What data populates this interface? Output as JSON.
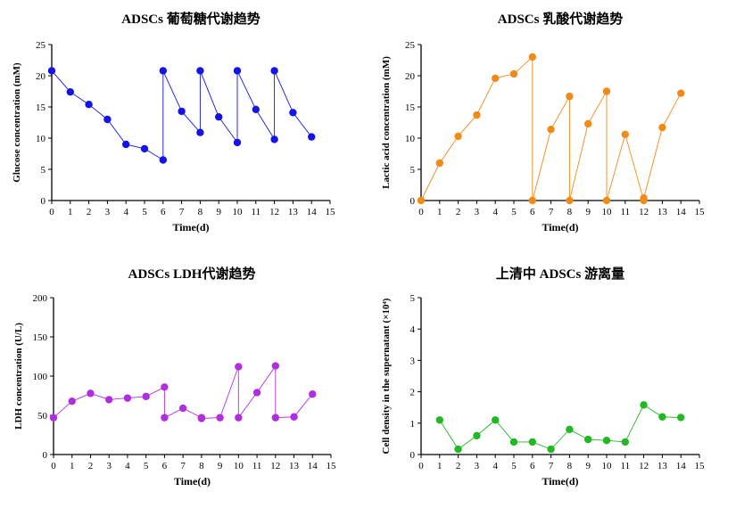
{
  "chart_data": [
    {
      "type": "line",
      "title": "ADSCs 葡萄糖代谢趋势",
      "xlabel": "Time(d)",
      "ylabel": "Glucose concentration (mM)",
      "xlim": [
        0,
        15
      ],
      "ylim": [
        0,
        25
      ],
      "xticks": [
        0,
        1,
        2,
        3,
        4,
        5,
        6,
        7,
        8,
        9,
        10,
        11,
        12,
        13,
        14,
        15
      ],
      "yticks": [
        0,
        5,
        10,
        15,
        20,
        25
      ],
      "color": "#1414e6",
      "points": [
        [
          0,
          20.8
        ],
        [
          1,
          17.4
        ],
        [
          2,
          15.4
        ],
        [
          3,
          13.0
        ],
        [
          4,
          9.0
        ],
        [
          5,
          8.3
        ],
        [
          6,
          6.5
        ],
        [
          6,
          20.8
        ],
        [
          7,
          14.3
        ],
        [
          8,
          10.9
        ],
        [
          8,
          20.8
        ],
        [
          9,
          13.4
        ],
        [
          10,
          9.3
        ],
        [
          10,
          20.8
        ],
        [
          11,
          14.6
        ],
        [
          12,
          9.8
        ],
        [
          12,
          20.8
        ],
        [
          13,
          14.1
        ],
        [
          14,
          10.2
        ]
      ]
    },
    {
      "type": "line",
      "title": "ADSCs 乳酸代谢趋势",
      "xlabel": "Time(d)",
      "ylabel": "Lactic acid concentration (mM)",
      "xlim": [
        0,
        15
      ],
      "ylim": [
        0,
        25
      ],
      "xticks": [
        0,
        1,
        2,
        3,
        4,
        5,
        6,
        7,
        8,
        9,
        10,
        11,
        12,
        13,
        14,
        15
      ],
      "yticks": [
        0,
        5,
        10,
        15,
        20,
        25
      ],
      "color": "#f28a1a",
      "points": [
        [
          0,
          0.0
        ],
        [
          1,
          6.0
        ],
        [
          2,
          10.3
        ],
        [
          3,
          13.7
        ],
        [
          4,
          19.6
        ],
        [
          5,
          20.3
        ],
        [
          6,
          23.0
        ],
        [
          6,
          0.0
        ],
        [
          7,
          11.4
        ],
        [
          8,
          16.7
        ],
        [
          8,
          0.0
        ],
        [
          9,
          12.3
        ],
        [
          10,
          17.5
        ],
        [
          10,
          0.0
        ],
        [
          11,
          10.6
        ],
        [
          12,
          0.0
        ],
        [
          12,
          0.4
        ],
        [
          13,
          11.7
        ],
        [
          14,
          17.2
        ]
      ]
    },
    {
      "type": "line",
      "title": "ADSCs LDH代谢趋势",
      "xlabel": "Time(d)",
      "ylabel": "LDH concentration (U/L)",
      "xlim": [
        0,
        15
      ],
      "ylim": [
        0,
        200
      ],
      "xticks": [
        0,
        1,
        2,
        3,
        4,
        5,
        6,
        7,
        8,
        9,
        10,
        11,
        12,
        13,
        14,
        15
      ],
      "yticks": [
        0,
        50,
        100,
        150,
        200
      ],
      "color": "#b02ee0",
      "points": [
        [
          0,
          47
        ],
        [
          1,
          68
        ],
        [
          2,
          78
        ],
        [
          3,
          70
        ],
        [
          4,
          72
        ],
        [
          5,
          74
        ],
        [
          6,
          86
        ],
        [
          6,
          47
        ],
        [
          7,
          59
        ],
        [
          8,
          47
        ],
        [
          8,
          46
        ],
        [
          9,
          47
        ],
        [
          10,
          112
        ],
        [
          10,
          47
        ],
        [
          11,
          79
        ],
        [
          12,
          113
        ],
        [
          12,
          47
        ],
        [
          13,
          48
        ],
        [
          14,
          77
        ]
      ]
    },
    {
      "type": "line",
      "title": "上清中 ADSCs 游离量",
      "xlabel": "Time(d)",
      "ylabel": "Cell density in the supernatant (×10⁴)",
      "xlim": [
        0,
        15
      ],
      "ylim": [
        0,
        5
      ],
      "xticks": [
        0,
        1,
        2,
        3,
        4,
        5,
        6,
        7,
        8,
        9,
        10,
        11,
        12,
        13,
        14,
        15
      ],
      "yticks": [
        0,
        1,
        2,
        3,
        4,
        5
      ],
      "color": "#22b822",
      "points": [
        [
          1,
          1.1
        ],
        [
          2,
          0.17
        ],
        [
          3,
          0.6
        ],
        [
          4,
          1.1
        ],
        [
          5,
          0.4
        ],
        [
          6,
          0.4
        ],
        [
          7,
          0.17
        ],
        [
          8,
          0.8
        ],
        [
          9,
          0.48
        ],
        [
          10,
          0.45
        ],
        [
          11,
          0.4
        ],
        [
          12,
          1.58
        ],
        [
          13,
          1.2
        ],
        [
          14,
          1.18
        ]
      ]
    }
  ]
}
